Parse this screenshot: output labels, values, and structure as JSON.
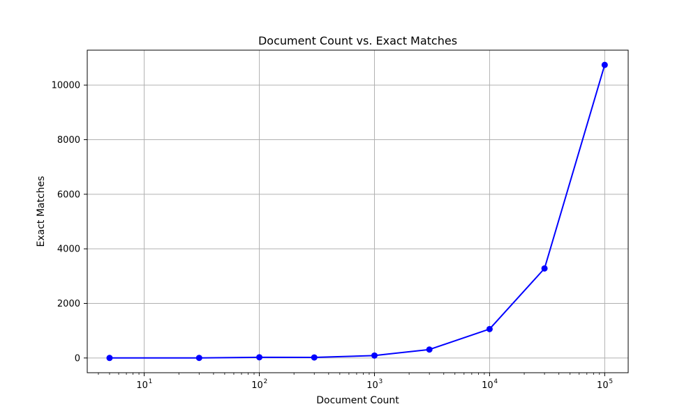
{
  "chart_data": {
    "type": "line",
    "title": "Document Count vs. Exact Matches",
    "xlabel": "Document Count",
    "ylabel": "Exact Matches",
    "xscale": "log",
    "xlim": [
      3.2,
      160000
    ],
    "ylim": [
      -540,
      11280
    ],
    "grid": true,
    "legend": "none",
    "x_ticks": [
      {
        "value": 10,
        "base": "10",
        "exp": "1"
      },
      {
        "value": 100,
        "base": "10",
        "exp": "2"
      },
      {
        "value": 1000,
        "base": "10",
        "exp": "3"
      },
      {
        "value": 10000,
        "base": "10",
        "exp": "4"
      },
      {
        "value": 100000,
        "base": "10",
        "exp": "5"
      }
    ],
    "y_ticks": [
      {
        "value": 0,
        "label": "0"
      },
      {
        "value": 2000,
        "label": "2000"
      },
      {
        "value": 4000,
        "label": "4000"
      },
      {
        "value": 6000,
        "label": "6000"
      },
      {
        "value": 8000,
        "label": "8000"
      },
      {
        "value": 10000,
        "label": "10000"
      }
    ],
    "series": [
      {
        "color": "#0000ff",
        "marker": "circle",
        "x": [
          5,
          30,
          100,
          300,
          1000,
          3000,
          10000,
          30000,
          100000
        ],
        "y": [
          2,
          3,
          25,
          20,
          90,
          310,
          1060,
          3280,
          10740
        ]
      }
    ],
    "colors": {
      "line": "#0000ff",
      "grid": "#b0b0b0",
      "axes": "#000000"
    }
  }
}
